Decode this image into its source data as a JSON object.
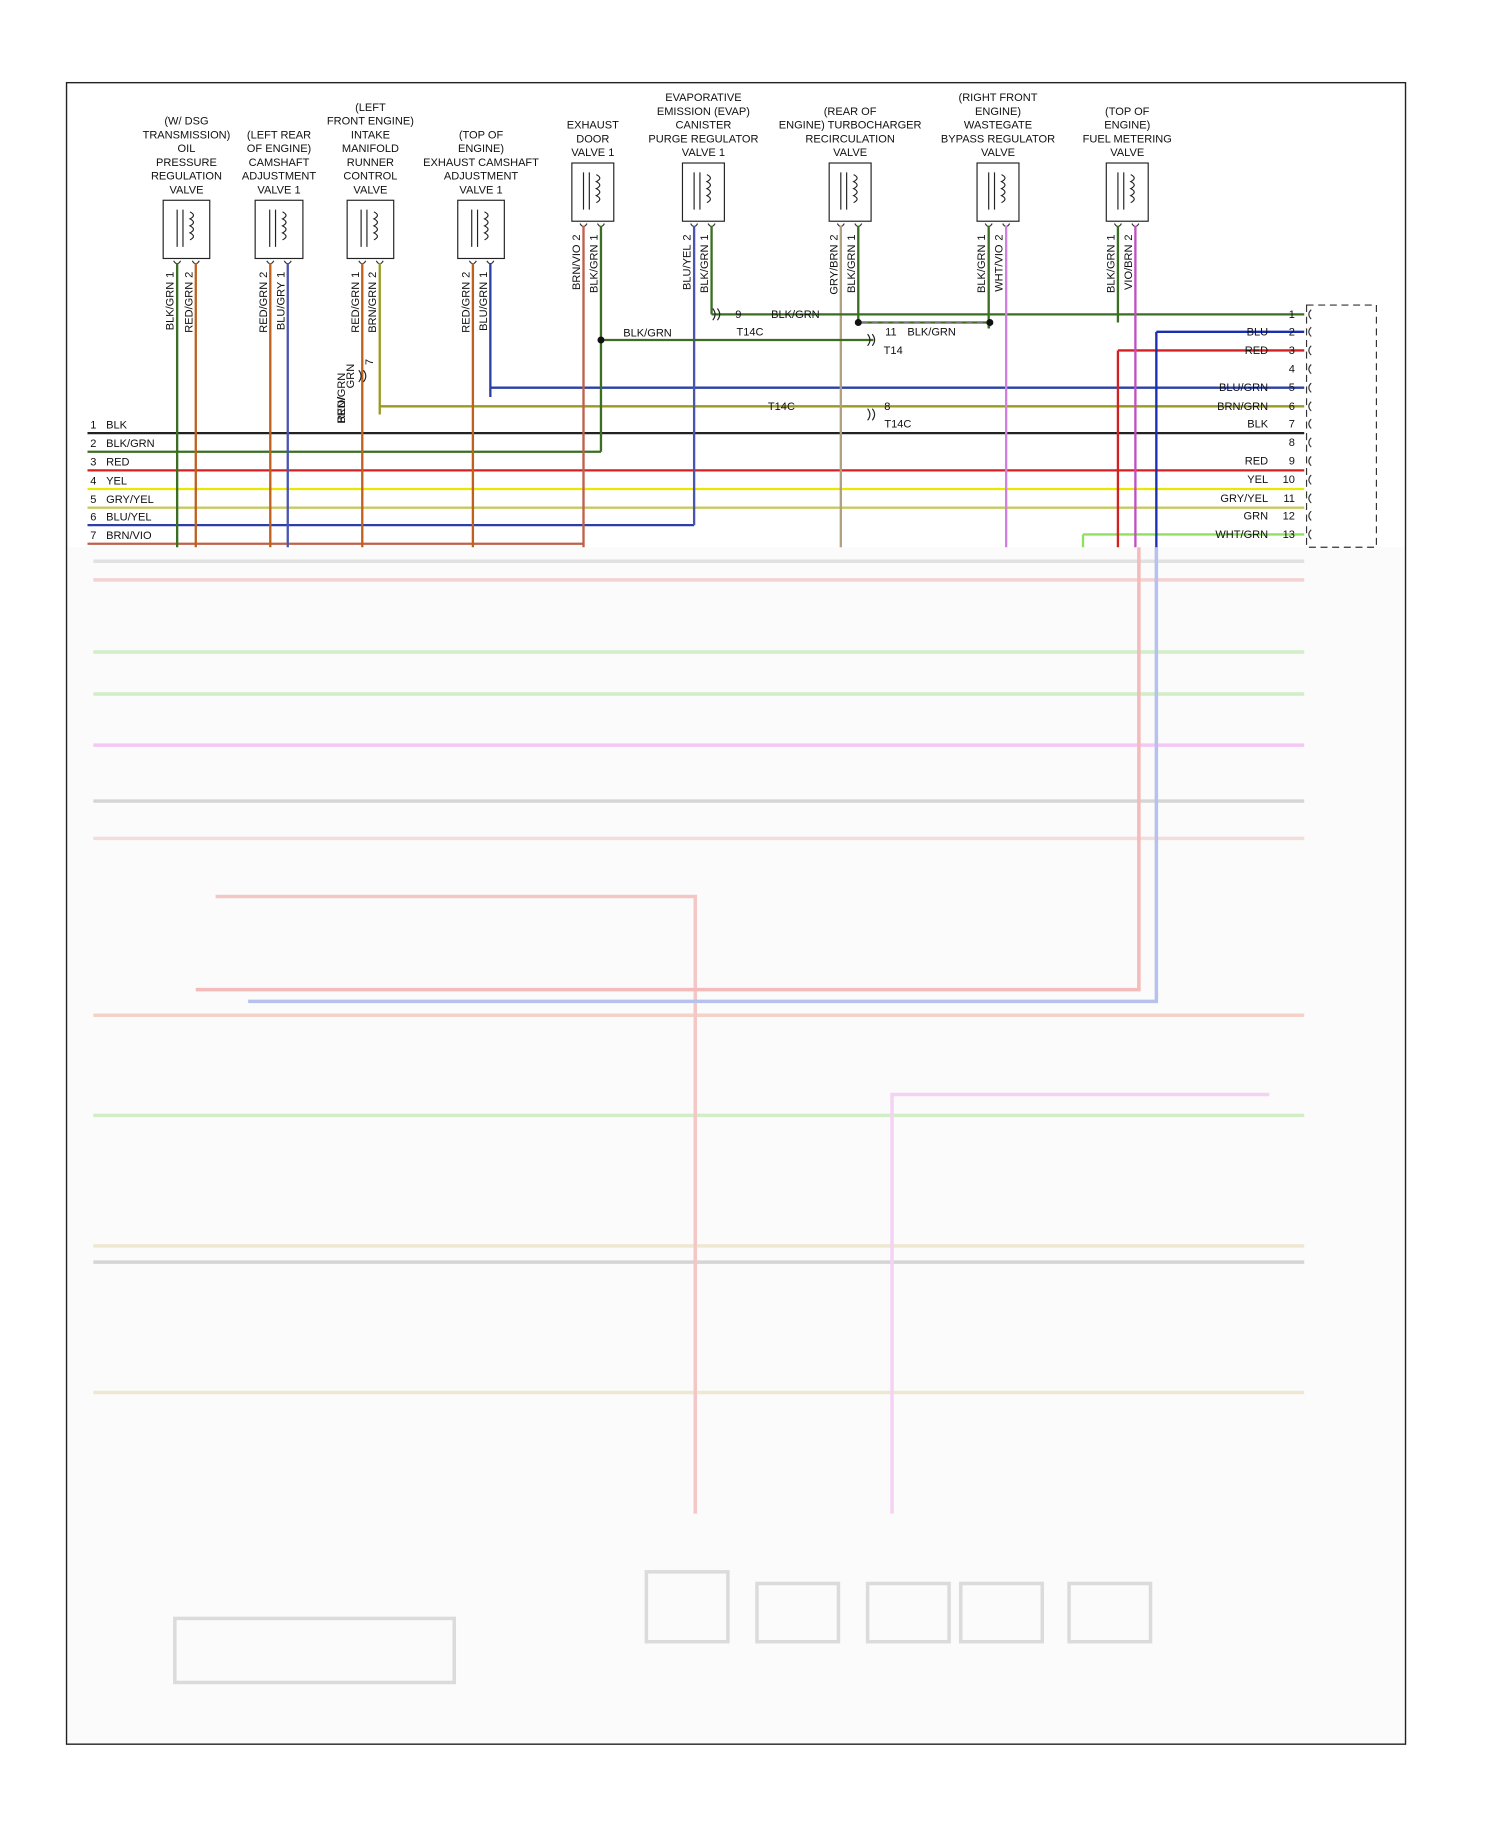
{
  "components": [
    {
      "label": [
        "(W/ DSG",
        "TRANSMISSION)",
        "OIL",
        "PRESSURE",
        "REGULATION",
        "VALVE"
      ],
      "pins": [
        {
          "number": 1,
          "wire": "BLK/GRN",
          "color": "#3b6e22"
        },
        {
          "number": 2,
          "wire": "RED/GRN",
          "color": "#c0601e"
        }
      ]
    },
    {
      "label": [
        "(LEFT REAR",
        "OF ENGINE)",
        "CAMSHAFT",
        "ADJUSTMENT",
        "VALVE 1"
      ],
      "pins": [
        {
          "number": 2,
          "wire": "RED/GRN",
          "color": "#c0601e"
        },
        {
          "number": 1,
          "wire": "BLU/GRY",
          "color": "#4a55b0"
        }
      ]
    },
    {
      "label": [
        "(LEFT",
        "FRONT ENGINE)",
        "INTAKE",
        "MANIFOLD",
        "RUNNER",
        "CONTROL",
        "VALVE"
      ],
      "pins": [
        {
          "number": 1,
          "wire": "RED/GRN",
          "color": "#c0601e"
        },
        {
          "number": 2,
          "wire": "BRN/GRN",
          "color": "#9a9a20"
        }
      ]
    },
    {
      "label": [
        "(TOP OF",
        "ENGINE)",
        "EXHAUST CAMSHAFT",
        "ADJUSTMENT",
        "VALVE 1"
      ],
      "pins": [
        {
          "number": 2,
          "wire": "RED/GRN",
          "color": "#c0601e"
        },
        {
          "number": 1,
          "wire": "BLU/GRN",
          "color": "#2b3fa6"
        }
      ]
    },
    {
      "label": [
        "EXHAUST",
        "DOOR",
        "VALVE 1"
      ],
      "pins": [
        {
          "number": 2,
          "wire": "BRN/VIO",
          "color": "#c0604a"
        },
        {
          "number": 1,
          "wire": "BLK/GRN",
          "color": "#3b6e22"
        }
      ]
    },
    {
      "label": [
        "EVAPORATIVE",
        "EMISSION (EVAP)",
        "CANISTER",
        "PURGE REGULATOR",
        "VALVE 1"
      ],
      "pins": [
        {
          "number": 2,
          "wire": "BLU/YEL",
          "color": "#4a55b0"
        },
        {
          "number": 1,
          "wire": "BLK/GRN",
          "color": "#3b6e22"
        }
      ]
    },
    {
      "label": [
        "(REAR OF",
        "ENGINE) TURBOCHARGER",
        "RECIRCULATION",
        "VALVE"
      ],
      "pins": [
        {
          "number": 2,
          "wire": "GRY/BRN",
          "color": "#b0a080"
        },
        {
          "number": 1,
          "wire": "BLK/GRN",
          "color": "#3b6e22"
        }
      ]
    },
    {
      "label": [
        "(RIGHT FRONT",
        "ENGINE)",
        "WASTEGATE",
        "BYPASS REGULATOR",
        "VALVE"
      ],
      "pins": [
        {
          "number": 1,
          "wire": "BLK/GRN",
          "color": "#3b6e22"
        },
        {
          "number": 2,
          "wire": "WHT/VIO",
          "color": "#d080e0"
        }
      ]
    },
    {
      "label": [
        "(TOP OF",
        "ENGINE)",
        "FUEL METERING",
        "VALVE"
      ],
      "pins": [
        {
          "number": 1,
          "wire": "BLK/GRN",
          "color": "#3b6e22"
        },
        {
          "number": 2,
          "wire": "VIO/BRN",
          "color": "#c050c0"
        }
      ]
    }
  ],
  "bus": [
    {
      "number": 1,
      "wire": "BLK",
      "color": "#222222"
    },
    {
      "number": 2,
      "wire": "BLK/GRN",
      "color": "#3b6e22"
    },
    {
      "number": 3,
      "wire": "RED",
      "color": "#d42020"
    },
    {
      "number": 4,
      "wire": "YEL",
      "color": "#e8e800"
    },
    {
      "number": 5,
      "wire": "GRY/YEL",
      "color": "#c8c860"
    },
    {
      "number": 6,
      "wire": "BLU/YEL",
      "color": "#2b3fa6"
    },
    {
      "number": 7,
      "wire": "BRN/VIO",
      "color": "#c0604a"
    }
  ],
  "connector": {
    "pins": [
      {
        "number": 1,
        "color": "#3b6e22"
      },
      {
        "number": 2,
        "wire": "BLU",
        "color": "#1a2fb0"
      },
      {
        "number": 3,
        "wire": "RED",
        "color": "#d42020"
      },
      {
        "number": 4,
        "color": "#888888"
      },
      {
        "number": 5,
        "wire": "BLU/GRN",
        "color": "#2b3fa6"
      },
      {
        "number": 6,
        "wire": "BRN/GRN",
        "color": "#9a9a20"
      },
      {
        "number": 7,
        "wire": "BLK",
        "color": "#222222"
      },
      {
        "number": 8,
        "color": "#888888"
      },
      {
        "number": 9,
        "wire": "RED",
        "color": "#d42020"
      },
      {
        "number": 10,
        "wire": "YEL",
        "color": "#e8e800"
      },
      {
        "number": 11,
        "wire": "GRY/YEL",
        "color": "#c8c860"
      },
      {
        "number": 12,
        "wire": "GRN",
        "color": "#70c040"
      },
      {
        "number": 13,
        "wire": "WHT/GRN",
        "color": "#90e060"
      }
    ]
  },
  "annotations": [
    "9",
    "T14C",
    "BLK/GRN",
    "BLK/GRN",
    "11",
    "T14",
    "BLK/GRN",
    "8",
    "T14C",
    "BRN/GRN",
    "RED/",
    "GRN",
    "7",
    "T14C"
  ]
}
